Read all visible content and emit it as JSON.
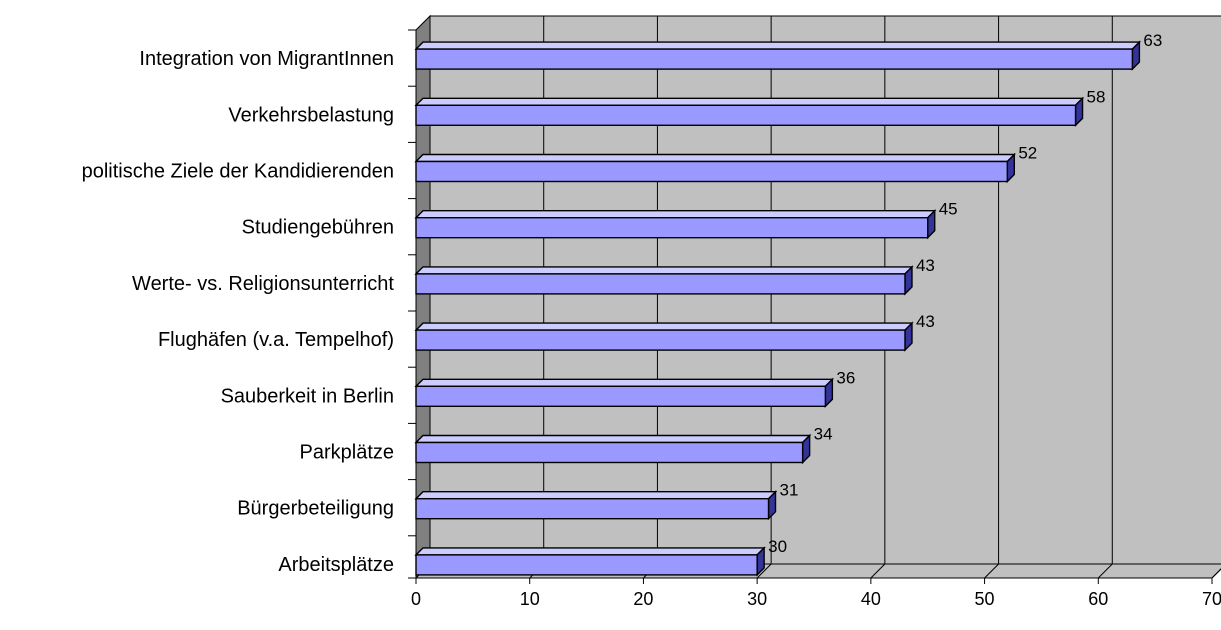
{
  "chart_data": {
    "type": "bar",
    "orientation": "horizontal",
    "style": "3d",
    "title": "",
    "xlabel": "",
    "ylabel": "",
    "categories": [
      "Integration von MigrantInnen",
      "Verkehrsbelastung",
      "politische Ziele der Kandidierenden",
      "Studiengebühren",
      "Werte- vs. Religionsunterricht",
      "Flughäfen (v.a. Tempelhof)",
      "Sauberkeit in Berlin",
      "Parkplätze",
      "Bürgerbeteiligung",
      "Arbeitsplätze"
    ],
    "values": [
      63,
      58,
      52,
      45,
      43,
      43,
      36,
      34,
      31,
      30
    ],
    "xlim": [
      0,
      70
    ],
    "xticks": [
      "0",
      "10",
      "20",
      "30",
      "40",
      "50",
      "60",
      "70"
    ],
    "grid": true,
    "legend": "none",
    "data_labels": true,
    "colors": {
      "bar_front": "#9999ff",
      "bar_top": "#ccccff",
      "bar_side": "#333399",
      "plot_back": "#c0c0c0",
      "plot_side": "#808080",
      "plot_floor": "#c0c0c0",
      "gridline": "#000000"
    }
  }
}
